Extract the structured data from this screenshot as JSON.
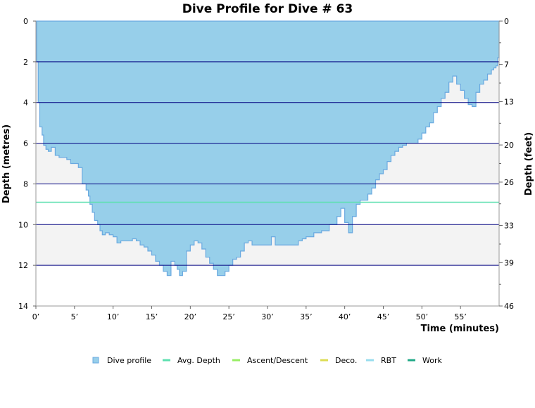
{
  "chart_data": {
    "type": "area",
    "title": "Dive Profile for Dive # 63",
    "xlabel": "Time (minutes)",
    "ylabel_left": "Depth (metres)",
    "ylabel_right": "Depth (feet)",
    "xlim": [
      0,
      60
    ],
    "ylim_left": [
      0,
      14
    ],
    "ylim_right": [
      0,
      46
    ],
    "x_ticks": [
      0,
      5,
      10,
      15,
      20,
      25,
      30,
      35,
      40,
      45,
      50,
      55
    ],
    "x_tick_labels": [
      "0’",
      "5’",
      "10’",
      "15’",
      "20’",
      "25’",
      "30’",
      "35’",
      "40’",
      "45’",
      "50’",
      "55’"
    ],
    "y_ticks_left": [
      0,
      2,
      4,
      6,
      8,
      10,
      12,
      14
    ],
    "y_ticks_left_labels": [
      "0",
      "2",
      "4",
      "6",
      "8",
      "10",
      "12",
      "14"
    ],
    "y_ticks_right": [
      0,
      7,
      13,
      20,
      26,
      33,
      39,
      46
    ],
    "y_ticks_right_labels": [
      "0",
      "7",
      "13",
      "20",
      "26",
      "33",
      "39",
      "46"
    ],
    "avg_depth": 8.9,
    "grid": true,
    "legend_position": "bottom",
    "colors": {
      "dive_profile_fill": "#97cfea",
      "dive_profile_line": "#6aa9e0",
      "band": "#f3f3f3",
      "gridline": "#000080",
      "avg_depth": "#5ee0b0",
      "ascent_descent": "#99ee66",
      "deco": "#dddd55",
      "rbt": "#99ddee",
      "work": "#22aa88"
    },
    "series": [
      {
        "name": "Dive profile",
        "x": [
          0,
          0.1,
          0.3,
          0.5,
          0.8,
          1.0,
          1.3,
          1.6,
          2.0,
          2.5,
          3.0,
          3.3,
          3.6,
          4.0,
          4.5,
          5.0,
          5.5,
          6.0,
          6.5,
          6.8,
          7.0,
          7.3,
          7.6,
          8.0,
          8.3,
          8.6,
          9.0,
          9.5,
          10.0,
          10.5,
          11.0,
          11.5,
          12.0,
          12.5,
          13.0,
          13.5,
          14.0,
          14.5,
          15.0,
          15.5,
          16.0,
          16.5,
          17.0,
          17.5,
          18.0,
          18.3,
          18.6,
          19.0,
          19.5,
          20.0,
          20.5,
          21.0,
          21.5,
          22.0,
          22.5,
          23.0,
          23.5,
          24.0,
          24.5,
          25.0,
          25.5,
          26.0,
          26.5,
          27.0,
          27.5,
          28.0,
          28.5,
          29.0,
          29.5,
          30.0,
          30.5,
          31.0,
          32.0,
          33.0,
          34.0,
          34.5,
          35.0,
          36.0,
          37.0,
          38.0,
          39.0,
          39.5,
          40.0,
          40.5,
          41.0,
          41.5,
          42.0,
          42.5,
          43.0,
          43.5,
          44.0,
          44.5,
          45.0,
          45.5,
          46.0,
          46.5,
          47.0,
          47.5,
          48.0,
          48.5,
          49.0,
          49.5,
          50.0,
          50.5,
          51.0,
          51.5,
          52.0,
          52.5,
          53.0,
          53.5,
          54.0,
          54.5,
          55.0,
          55.5,
          56.0,
          56.5,
          57.0,
          57.5,
          58.0,
          58.5,
          59.0,
          59.3,
          59.6,
          59.8,
          60.0
        ],
        "values": [
          0,
          2.0,
          4.0,
          5.2,
          5.6,
          6.1,
          6.3,
          6.4,
          6.2,
          6.6,
          6.7,
          6.7,
          6.7,
          6.8,
          7.0,
          7.0,
          7.2,
          8.0,
          8.3,
          8.6,
          9.0,
          9.4,
          9.8,
          10.0,
          10.3,
          10.5,
          10.4,
          10.5,
          10.6,
          10.9,
          10.8,
          10.8,
          10.8,
          10.7,
          10.8,
          11.0,
          11.1,
          11.3,
          11.5,
          11.8,
          12.0,
          12.3,
          12.5,
          11.8,
          12.0,
          12.2,
          12.5,
          12.3,
          11.3,
          11.0,
          10.8,
          10.9,
          11.2,
          11.6,
          11.9,
          12.2,
          12.5,
          12.5,
          12.3,
          12.0,
          11.7,
          11.6,
          11.3,
          10.9,
          10.8,
          11.0,
          11.0,
          11.0,
          11.0,
          11.0,
          10.6,
          11.0,
          11.0,
          11.0,
          10.8,
          10.7,
          10.6,
          10.4,
          10.3,
          10.0,
          9.6,
          9.2,
          9.9,
          10.4,
          9.6,
          9.0,
          8.8,
          8.8,
          8.5,
          8.2,
          7.8,
          7.5,
          7.3,
          6.9,
          6.6,
          6.4,
          6.2,
          6.1,
          6.0,
          6.0,
          6.0,
          5.8,
          5.5,
          5.2,
          5.0,
          4.5,
          4.2,
          3.8,
          3.5,
          3.0,
          2.7,
          3.1,
          3.4,
          3.8,
          4.1,
          4.2,
          3.5,
          3.1,
          2.9,
          2.6,
          2.4,
          2.3,
          2.2,
          1.8,
          0
        ]
      },
      {
        "name": "Avg. Depth",
        "values": [
          8.9
        ]
      },
      {
        "name": "Ascent/Descent",
        "values": []
      },
      {
        "name": "Deco.",
        "values": []
      },
      {
        "name": "RBT",
        "values": []
      },
      {
        "name": "Work",
        "values": []
      }
    ]
  }
}
